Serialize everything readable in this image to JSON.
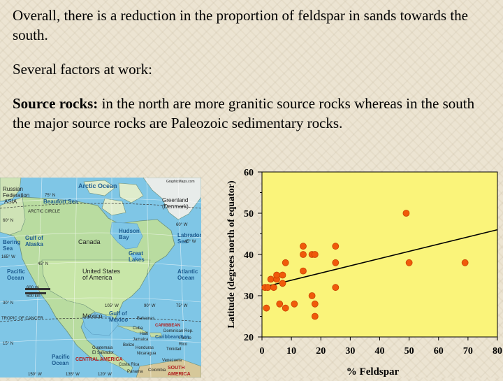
{
  "slide": {
    "paragraph1": "Overall, there is a reduction in the proportion of feldspar in sands towards the south.",
    "paragraph2": "Several factors at work:",
    "paragraph3_bold": "Source rocks:",
    "paragraph3_rest": " in the north are more granitic source rocks whereas in the south the major source rocks are Paleozoic sedimentary rocks."
  },
  "map": {
    "labels": {
      "arctic_ocean": "Arctic Ocean",
      "russian_federation": "Russian Federation",
      "asia": "ASIA",
      "beaufort_sea": "Beaufort Sea",
      "greenland": "Greenland (Denmark)",
      "arctic_circle": "ARCTIC CIRCLE",
      "gulf_of_alaska": "Gulf of Alaska",
      "bering_sea": "Bering Sea",
      "hudson_bay": "Hudson Bay",
      "labrador_sea": "Labrador Sea",
      "canada": "Canada",
      "great_lakes": "Great Lakes",
      "usa": "United States of America",
      "pacific_ocean_north": "Pacific Ocean",
      "atlantic_ocean": "Atlantic Ocean",
      "gulf_of_mexico": "Gulf of Mexico",
      "mexico": "Mexico",
      "tropic_of_cancer": "TROPIC OF CANCER",
      "caribbean_sea": "Caribbean Sea",
      "caribbean": "CARIBBEAN",
      "bahamas": "Bahamas",
      "cuba": "Cuba",
      "dominican_rep": "Dominican Rep.",
      "puerto_rico": "Puerto Rico",
      "jamaica": "Jamaica",
      "haiti": "Haiti",
      "belize": "Belize",
      "honduras": "Honduras",
      "guatemala": "Guatemala",
      "el_salvador": "El Salvador",
      "nicaragua": "Nicaragua",
      "costa_rica": "Costa Rica",
      "panama": "Panama",
      "colombia": "Colombia",
      "venezuela": "Venezuela",
      "trinidad": "Trinidad",
      "central_america": "CENTRAL AMERICA",
      "south_america": "SOUTH AMERICA",
      "pacific_ocean_south": "Pacific Ocean",
      "scale_mi": "600 mi",
      "scale_km": "600 km",
      "credit": "GraphicMaps.com",
      "lat_75n": "75° N",
      "lat_60n": "60° N",
      "lat_45n": "45° N",
      "lat_30n": "30° N",
      "lat_15n": "15° N",
      "lon_165w": "165° W",
      "lon_150w": "150° W",
      "lon_135w": "135° W",
      "lon_120w": "120° W",
      "lon_105w": "105° W",
      "lon_90w": "90° W",
      "lon_75w": "75° W",
      "lon_60w": "60° W",
      "lon_45w": "45° W"
    }
  },
  "chart_data": {
    "type": "scatter",
    "xlabel": "% Feldspar",
    "ylabel": "Latitude (degrees north of equator)",
    "xlim": [
      0,
      80
    ],
    "ylim": [
      20,
      60
    ],
    "xticks": [
      0,
      10,
      20,
      30,
      40,
      50,
      60,
      70,
      80
    ],
    "yticks": [
      20,
      30,
      40,
      50,
      60
    ],
    "grid": false,
    "plot_bg": "#faf47a",
    "point_color": "#f05a0a",
    "line_color": "#000000",
    "points": [
      {
        "x": 1,
        "y": 32
      },
      {
        "x": 2,
        "y": 32
      },
      {
        "x": 1.5,
        "y": 27
      },
      {
        "x": 3,
        "y": 34
      },
      {
        "x": 4,
        "y": 32
      },
      {
        "x": 5,
        "y": 34
      },
      {
        "x": 5,
        "y": 35
      },
      {
        "x": 6,
        "y": 28
      },
      {
        "x": 7,
        "y": 33
      },
      {
        "x": 7,
        "y": 35
      },
      {
        "x": 8,
        "y": 27
      },
      {
        "x": 8,
        "y": 38
      },
      {
        "x": 11,
        "y": 28
      },
      {
        "x": 14,
        "y": 36
      },
      {
        "x": 14,
        "y": 40
      },
      {
        "x": 14,
        "y": 42
      },
      {
        "x": 17,
        "y": 40
      },
      {
        "x": 18,
        "y": 40
      },
      {
        "x": 17,
        "y": 30
      },
      {
        "x": 18,
        "y": 28
      },
      {
        "x": 18,
        "y": 25
      },
      {
        "x": 25,
        "y": 42
      },
      {
        "x": 25,
        "y": 38
      },
      {
        "x": 25,
        "y": 32
      },
      {
        "x": 49,
        "y": 50
      },
      {
        "x": 50,
        "y": 38
      },
      {
        "x": 69,
        "y": 38
      }
    ],
    "trendline": {
      "x": [
        0,
        80
      ],
      "y": [
        32,
        46
      ]
    }
  }
}
